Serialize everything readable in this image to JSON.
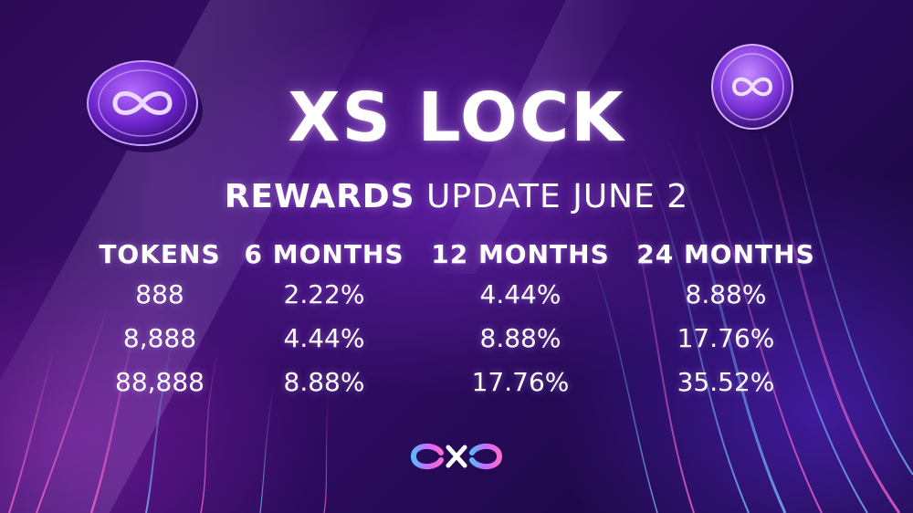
{
  "title": "XS LOCK",
  "subtitle": {
    "strong": "REWARDS",
    "rest": "UPDATE JUNE 2"
  },
  "table": {
    "headers": [
      "TOKENS",
      "6 MONTHS",
      "12 MONTHS",
      "24 MONTHS"
    ],
    "rows": [
      [
        "888",
        "2.22%",
        "4.44%",
        "8.88%"
      ],
      [
        "8,888",
        "4.44%",
        "8.88%",
        "17.76%"
      ],
      [
        "88,888",
        "8.88%",
        "17.76%",
        "35.52%"
      ]
    ]
  },
  "icons": {
    "coin_left": "infinity-coin-icon",
    "coin_right": "infinity-coin-icon",
    "logo": "xs-infinity-logo-icon"
  },
  "colors": {
    "background": "#2b0a55",
    "accent_purple": "#8a3cff",
    "accent_pink": "#e85ad8",
    "accent_blue": "#4fb4ff",
    "text": "#ffffff"
  }
}
